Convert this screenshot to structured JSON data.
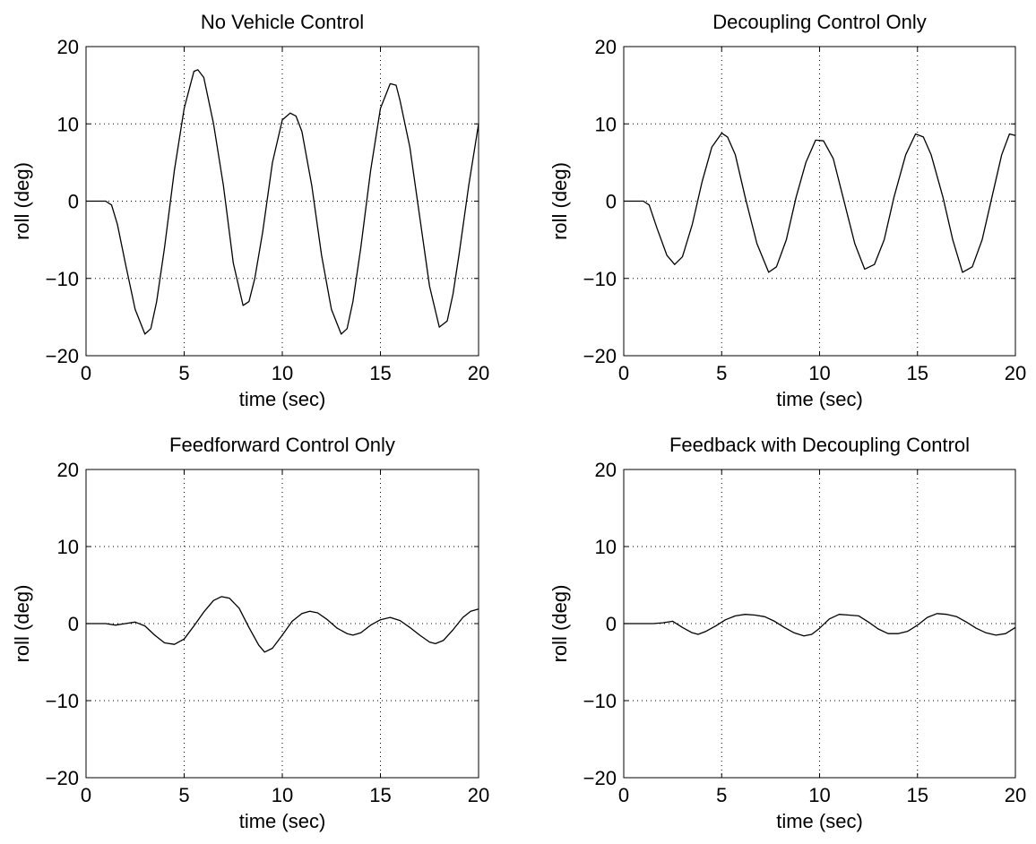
{
  "chart_data": [
    {
      "type": "line",
      "title": "No Vehicle Control",
      "xlabel": "time (sec)",
      "ylabel": "roll (deg)",
      "xlim": [
        0,
        20
      ],
      "ylim": [
        -20,
        20
      ],
      "xticks": [
        0,
        5,
        10,
        15,
        20
      ],
      "yticks": [
        -20,
        -10,
        0,
        10,
        20
      ],
      "grid": true,
      "line_color": "#000000",
      "series": [
        {
          "x": [
            0,
            1.0,
            1.3,
            1.6,
            2.0,
            2.5,
            3.0,
            3.3,
            3.6,
            4.0,
            4.5,
            5.0,
            5.5,
            5.7,
            6.0,
            6.5,
            7.0,
            7.5,
            8.0,
            8.3,
            8.6,
            9.0,
            9.5,
            10.0,
            10.4,
            10.7,
            11.0,
            11.5,
            12.0,
            12.5,
            13.0,
            13.3,
            13.6,
            14.0,
            14.5,
            15.0,
            15.5,
            15.8,
            16.0,
            16.5,
            17.0,
            17.5,
            18.0,
            18.4,
            18.7,
            19.0,
            19.5,
            20.0
          ],
          "y": [
            0,
            0,
            -0.5,
            -3,
            -8,
            -14,
            -17.2,
            -16.5,
            -13,
            -6,
            4,
            12,
            16.8,
            17,
            16,
            10,
            2,
            -8,
            -13.5,
            -13,
            -10,
            -4,
            5,
            10.5,
            11.4,
            11,
            9,
            2,
            -7,
            -14,
            -17.2,
            -16.5,
            -13,
            -6,
            4,
            12,
            15.2,
            15,
            13,
            7,
            -2,
            -11,
            -16.3,
            -15.5,
            -12,
            -7,
            2,
            10
          ]
        }
      ]
    },
    {
      "type": "line",
      "title": "Decoupling Control Only",
      "xlabel": "time (sec)",
      "ylabel": "roll (deg)",
      "xlim": [
        0,
        20
      ],
      "ylim": [
        -20,
        20
      ],
      "xticks": [
        0,
        5,
        10,
        15,
        20
      ],
      "yticks": [
        -20,
        -10,
        0,
        10,
        20
      ],
      "grid": true,
      "line_color": "#000000",
      "series": [
        {
          "x": [
            0,
            1.0,
            1.3,
            1.7,
            2.2,
            2.6,
            3.0,
            3.5,
            4.0,
            4.5,
            5.0,
            5.3,
            5.7,
            6.2,
            6.8,
            7.4,
            7.8,
            8.3,
            8.8,
            9.3,
            9.8,
            10.2,
            10.7,
            11.2,
            11.8,
            12.3,
            12.8,
            13.3,
            13.8,
            14.4,
            14.9,
            15.3,
            15.7,
            16.3,
            16.8,
            17.3,
            17.8,
            18.3,
            18.8,
            19.3,
            19.7,
            20.0
          ],
          "y": [
            0,
            0,
            -0.5,
            -3.5,
            -7,
            -8.2,
            -7.2,
            -3,
            2.5,
            7,
            8.8,
            8.3,
            6,
            0.5,
            -5.5,
            -9.2,
            -8.5,
            -5,
            0.5,
            5,
            7.9,
            7.8,
            5.5,
            0.5,
            -5.5,
            -8.8,
            -8.2,
            -5,
            0.5,
            6,
            8.7,
            8.3,
            6,
            0.5,
            -5,
            -9.2,
            -8.5,
            -5,
            0.5,
            6,
            8.7,
            8.5
          ]
        }
      ]
    },
    {
      "type": "line",
      "title": "Feedforward Control Only",
      "xlabel": "time (sec)",
      "ylabel": "roll (deg)",
      "xlim": [
        0,
        20
      ],
      "ylim": [
        -20,
        20
      ],
      "xticks": [
        0,
        5,
        10,
        15,
        20
      ],
      "yticks": [
        -20,
        -10,
        0,
        10,
        20
      ],
      "grid": true,
      "line_color": "#000000",
      "series": [
        {
          "x": [
            0,
            1.0,
            1.5,
            2.0,
            2.5,
            3.0,
            3.5,
            4.0,
            4.5,
            5.0,
            5.5,
            6.0,
            6.5,
            6.9,
            7.3,
            7.8,
            8.3,
            8.8,
            9.1,
            9.5,
            10.0,
            10.5,
            11.0,
            11.4,
            11.8,
            12.3,
            12.8,
            13.3,
            13.6,
            14.0,
            14.5,
            15.0,
            15.5,
            16.0,
            16.5,
            17.0,
            17.5,
            17.8,
            18.2,
            18.7,
            19.2,
            19.6,
            20.0
          ],
          "y": [
            0,
            0,
            -0.2,
            0,
            0.2,
            -0.3,
            -1.5,
            -2.5,
            -2.7,
            -2,
            -0.3,
            1.5,
            3,
            3.5,
            3.3,
            2,
            -0.5,
            -2.8,
            -3.7,
            -3.2,
            -1.5,
            0.3,
            1.3,
            1.6,
            1.4,
            0.5,
            -0.6,
            -1.3,
            -1.5,
            -1.2,
            -0.2,
            0.5,
            0.8,
            0.4,
            -0.5,
            -1.5,
            -2.4,
            -2.6,
            -2.2,
            -0.8,
            0.8,
            1.6,
            1.9
          ]
        }
      ]
    },
    {
      "type": "line",
      "title": "Feedback with Decoupling Control",
      "xlabel": "time (sec)",
      "ylabel": "roll (deg)",
      "xlim": [
        0,
        20
      ],
      "ylim": [
        -20,
        20
      ],
      "xticks": [
        0,
        5,
        10,
        15,
        20
      ],
      "yticks": [
        -20,
        -10,
        0,
        10,
        20
      ],
      "grid": true,
      "line_color": "#000000",
      "series": [
        {
          "x": [
            0,
            1.0,
            1.5,
            2.0,
            2.5,
            3.0,
            3.5,
            3.8,
            4.2,
            4.7,
            5.2,
            5.7,
            6.2,
            6.7,
            7.2,
            7.7,
            8.2,
            8.7,
            9.2,
            9.6,
            10.0,
            10.5,
            11.0,
            11.5,
            12.0,
            12.5,
            13.0,
            13.5,
            14.0,
            14.5,
            15.0,
            15.5,
            16.0,
            16.5,
            17.0,
            17.5,
            18.0,
            18.5,
            19.0,
            19.5,
            20.0
          ],
          "y": [
            0,
            0,
            0,
            0.1,
            0.3,
            -0.5,
            -1.2,
            -1.4,
            -1,
            -0.3,
            0.5,
            1.0,
            1.2,
            1.1,
            0.9,
            0.3,
            -0.5,
            -1.2,
            -1.6,
            -1.4,
            -0.6,
            0.6,
            1.2,
            1.1,
            1.0,
            0.2,
            -0.7,
            -1.3,
            -1.3,
            -1.0,
            -0.2,
            0.8,
            1.3,
            1.2,
            0.9,
            0.2,
            -0.6,
            -1.2,
            -1.5,
            -1.3,
            -0.5
          ]
        }
      ]
    }
  ]
}
